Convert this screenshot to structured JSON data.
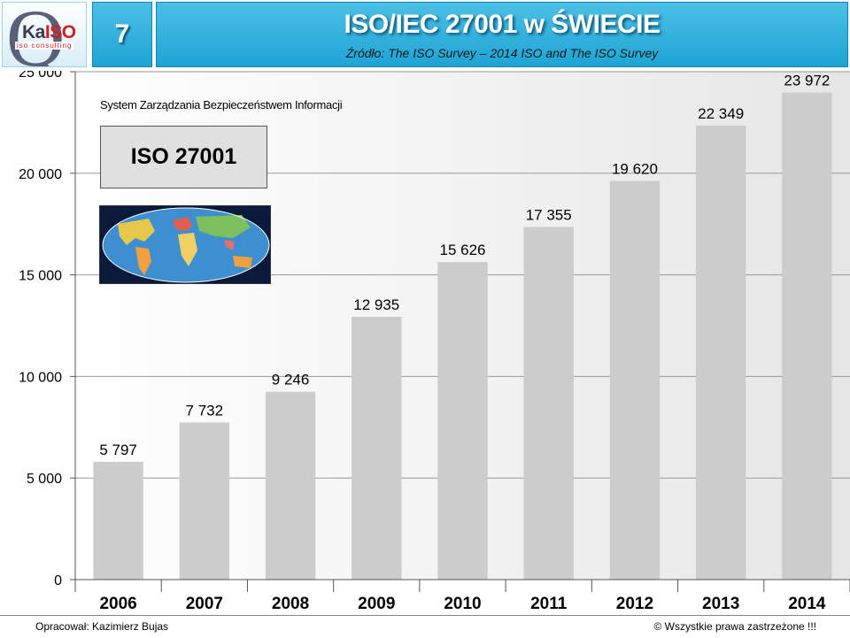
{
  "header": {
    "logo_text_a": "Ka",
    "logo_text_b": "ISO",
    "logo_sub": "iso consulting",
    "slide_number": "7",
    "title": "ISO/IEC 27001 w ŚWIECIE",
    "subtitle": "Źródło: The ISO Survey – 2014   ISO and The ISO Survey"
  },
  "inset": {
    "note": "System Zarządzania Bezpieczeństwem Informacji",
    "box_label": "ISO 27001"
  },
  "footer": {
    "left": "Opracował: Kazimierz Bujas",
    "right": "©  Wszystkie prawa zastrzeżone !!!"
  },
  "colors": {
    "header_blue": "#1ea4d4",
    "bar": "#cccccc",
    "plot_bg": "#f2f2f2"
  },
  "chart_data": {
    "type": "bar",
    "categories": [
      "2006",
      "2007",
      "2008",
      "2009",
      "2010",
      "2011",
      "2012",
      "2013",
      "2014"
    ],
    "values": [
      5797,
      7732,
      9246,
      12935,
      15626,
      17355,
      19620,
      22349,
      23972
    ],
    "value_labels": [
      "5 797",
      "7 732",
      "9 246",
      "12 935",
      "15 626",
      "17 355",
      "19 620",
      "22 349",
      "23 972"
    ],
    "ylim": [
      0,
      25000
    ],
    "yticks": [
      0,
      5000,
      10000,
      15000,
      20000,
      25000
    ],
    "ytick_labels": [
      "0",
      "5 000",
      "10 000",
      "15 000",
      "20 000",
      "25 000"
    ],
    "grid": true,
    "title": "",
    "xlabel": "",
    "ylabel": ""
  }
}
